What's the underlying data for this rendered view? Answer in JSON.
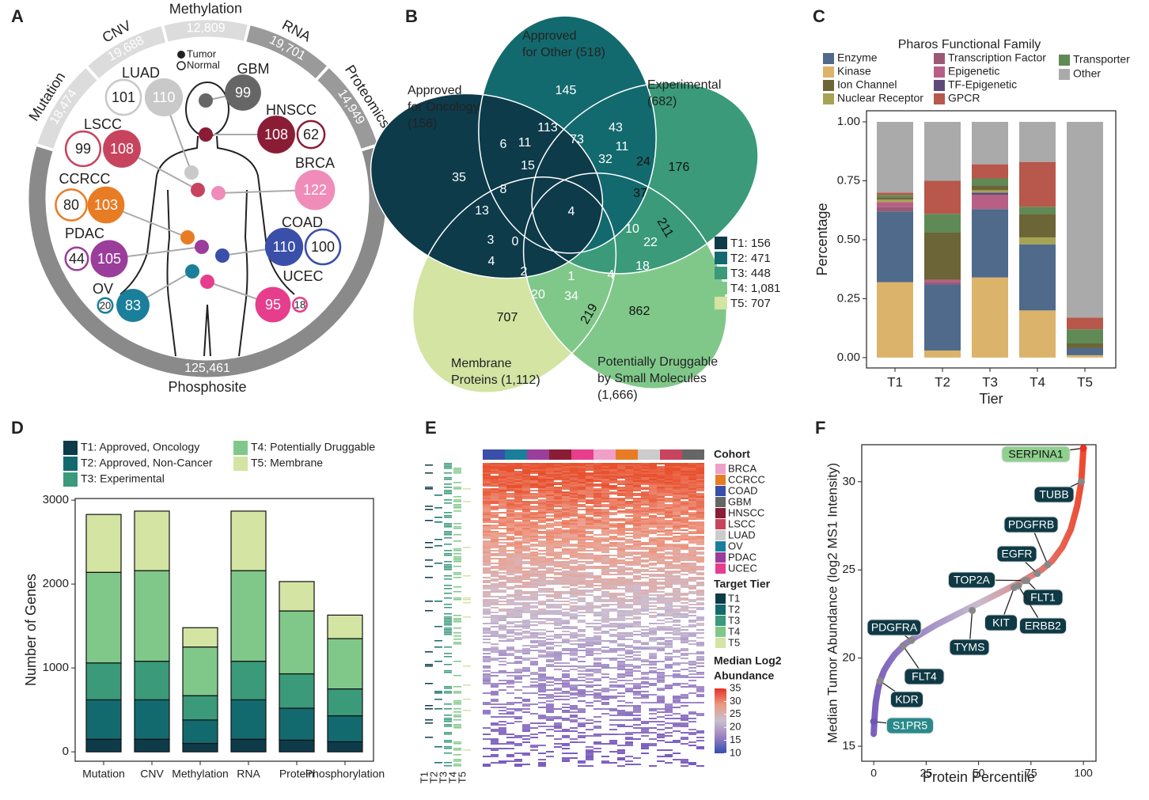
{
  "panel_labels": [
    "A",
    "B",
    "C",
    "D",
    "E",
    "F"
  ],
  "panel_a": {
    "layers": [
      {
        "name": "Mutation",
        "count": "18,474",
        "color": "#dcdcdc"
      },
      {
        "name": "CNV",
        "count": "19,688",
        "color": "#dcdcdc"
      },
      {
        "name": "Methylation",
        "count": "12,809",
        "color": "#dcdcdc"
      },
      {
        "name": "RNA",
        "count": "19,701",
        "color": "#9a9a9a"
      },
      {
        "name": "Proteomics",
        "count": "14,949",
        "color": "#9a9a9a"
      },
      {
        "name": "Phosphosite",
        "count": "125,461",
        "color": "#8a8a8a"
      }
    ],
    "legend": [
      "Tumor",
      "Normal"
    ],
    "cohorts": [
      {
        "name": "LUAD",
        "color": "#c9c9c9",
        "tumor": 110,
        "normal": 101
      },
      {
        "name": "GBM",
        "color": "#666666",
        "tumor": 99
      },
      {
        "name": "HNSCC",
        "color": "#8b1c35",
        "tumor": 108,
        "normal": 62
      },
      {
        "name": "LSCC",
        "color": "#c8445e",
        "tumor": 108,
        "normal": 99
      },
      {
        "name": "BRCA",
        "color": "#f08cba",
        "tumor": 122
      },
      {
        "name": "CCRCC",
        "color": "#e87c25",
        "tumor": 103,
        "normal": 80
      },
      {
        "name": "COAD",
        "color": "#3a4faa",
        "tumor": 110,
        "normal": 100
      },
      {
        "name": "PDAC",
        "color": "#9b3d9b",
        "tumor": 105,
        "normal": 44
      },
      {
        "name": "OV",
        "color": "#1a7f9a",
        "tumor": 83,
        "normal": 20
      },
      {
        "name": "UCEC",
        "color": "#e63e8c",
        "tumor": 95,
        "normal": 18
      }
    ]
  },
  "panel_b": {
    "sets": [
      {
        "label": [
          "Approved",
          "for Oncology",
          "(156)"
        ],
        "color": "#0d3b4a"
      },
      {
        "label": [
          "Approved",
          "for Other (518)"
        ],
        "color": "#136a6e"
      },
      {
        "label": [
          "Experimental",
          "(682)"
        ],
        "color": "#3a9a7a"
      },
      {
        "label": [
          "Potentially Druggable",
          "by Small Molecules",
          "(1,666)"
        ],
        "color": "#80c88a"
      },
      {
        "label": [
          "Membrane",
          "Proteins (1,112)"
        ],
        "color": "#d3e4a3"
      }
    ],
    "regions": [
      35,
      145,
      176,
      862,
      707,
      113,
      6,
      11,
      73,
      43,
      11,
      15,
      32,
      24,
      8,
      37,
      13,
      4,
      10,
      211,
      3,
      0,
      22,
      4,
      18,
      2,
      1,
      4,
      20,
      34,
      219
    ],
    "legend": [
      "T1: 156",
      "T2: 471",
      "T3: 448",
      "T4: 1,081",
      "T5: 707"
    ]
  },
  "panel_e": {
    "cohort_title": "Cohort",
    "cohorts": [
      {
        "name": "BRCA",
        "color": "#f0a0c8"
      },
      {
        "name": "CCRCC",
        "color": "#e87c25"
      },
      {
        "name": "COAD",
        "color": "#3a4faa"
      },
      {
        "name": "GBM",
        "color": "#666666"
      },
      {
        "name": "HNSCC",
        "color": "#8b1c35"
      },
      {
        "name": "LSCC",
        "color": "#c8445e"
      },
      {
        "name": "LUAD",
        "color": "#cccccc"
      },
      {
        "name": "OV",
        "color": "#1a7f9a"
      },
      {
        "name": "PDAC",
        "color": "#9b3d9b"
      },
      {
        "name": "UCEC",
        "color": "#e63e8c"
      }
    ],
    "tier_title": "Target Tier",
    "tiers": [
      {
        "name": "T1",
        "color": "#0d3b4a"
      },
      {
        "name": "T2",
        "color": "#136a6e"
      },
      {
        "name": "T3",
        "color": "#3a9a7a"
      },
      {
        "name": "T4",
        "color": "#80c88a"
      },
      {
        "name": "T5",
        "color": "#d3e4a3"
      }
    ],
    "scale_title": [
      "Median Log2",
      "Abundance"
    ],
    "scale_ticks": [
      35,
      30,
      25,
      20,
      15,
      10
    ],
    "scale_colors": [
      "#e8302a",
      "#e89a80",
      "#c8c0d0",
      "#9a80c0",
      "#3050b0"
    ]
  },
  "chart_data": [
    {
      "type": "stacked_bar",
      "title": "Pharos Functional Family",
      "categories": [
        "T1",
        "T2",
        "T3",
        "T4",
        "T5"
      ],
      "series": [
        {
          "name": "Kinase",
          "color": "#dcb36a",
          "values": [
            0.32,
            0.03,
            0.34,
            0.2,
            0.01
          ]
        },
        {
          "name": "Enzyme",
          "color": "#4f6a8a",
          "values": [
            0.3,
            0.28,
            0.29,
            0.28,
            0.03
          ]
        },
        {
          "name": "Transcription Factor",
          "color": "#9b5a74",
          "values": [
            0.02,
            0.01,
            0,
            0,
            0
          ]
        },
        {
          "name": "Epigenetic",
          "color": "#b85f86",
          "values": [
            0.02,
            0.01,
            0.06,
            0,
            0
          ]
        },
        {
          "name": "TF-Epigenetic",
          "color": "#5e4a7a",
          "values": [
            0,
            0,
            0.01,
            0,
            0
          ]
        },
        {
          "name": "Nuclear Receptor",
          "color": "#a6a355",
          "values": [
            0.01,
            0,
            0.01,
            0.03,
            0
          ]
        },
        {
          "name": "Ion Channel",
          "color": "#6b6538",
          "values": [
            0.01,
            0.2,
            0.02,
            0.1,
            0.02
          ]
        },
        {
          "name": "Transporter",
          "color": "#5f8a55",
          "values": [
            0.01,
            0.08,
            0.03,
            0.03,
            0.06
          ]
        },
        {
          "name": "GPCR",
          "color": "#b8574b",
          "values": [
            0.01,
            0.14,
            0.06,
            0.19,
            0.05
          ]
        },
        {
          "name": "Other",
          "color": "#aaaaaa",
          "values": [
            0.3,
            0.25,
            0.18,
            0.17,
            0.83
          ]
        }
      ],
      "xlabel": "Tier",
      "ylabel": "Percentage",
      "ylim": [
        -0.044,
        1.047
      ],
      "yticks": [
        {
          "value": 0,
          "label": "0.00"
        },
        {
          "value": 0.25,
          "label": "0.25"
        },
        {
          "value": 0.5,
          "label": "0.50"
        },
        {
          "value": 0.75,
          "label": "0.75"
        },
        {
          "value": 1,
          "label": "1.00"
        }
      ]
    },
    {
      "type": "stacked_bar",
      "categories": [
        "Mutation",
        "CNV",
        "Methylation",
        "RNA",
        "Protein",
        "Phosphorylation"
      ],
      "series": [
        {
          "name": "T1: Approved, Oncology",
          "color": "#0d3b4a",
          "values": [
            150,
            150,
            100,
            150,
            140,
            120
          ]
        },
        {
          "name": "T2: Approved, Non-Cancer",
          "color": "#136a6e",
          "values": [
            470,
            470,
            280,
            470,
            380,
            310
          ]
        },
        {
          "name": "T3: Experimental",
          "color": "#3a9a7a",
          "values": [
            440,
            460,
            290,
            460,
            410,
            320
          ]
        },
        {
          "name": "T4: Potentially Druggable",
          "color": "#80c88a",
          "values": [
            1080,
            1080,
            580,
            1080,
            750,
            600
          ]
        },
        {
          "name": "T5: Membrane",
          "color": "#d3e4a3",
          "values": [
            690,
            710,
            230,
            710,
            350,
            280
          ]
        }
      ],
      "ylabel": "Number of Genes",
      "ylim": [
        -112,
        3020
      ],
      "yticks": [
        0,
        1000,
        2000,
        3000
      ]
    },
    {
      "type": "line",
      "x": [
        0,
        0.5,
        1,
        2,
        3,
        5,
        7,
        10,
        15,
        20,
        30,
        40,
        50,
        60,
        70,
        80,
        85,
        90,
        94,
        97,
        99,
        100
      ],
      "values": [
        15.7,
        16.8,
        17.5,
        18.2,
        18.7,
        19.3,
        19.7,
        20.2,
        20.8,
        21.2,
        21.9,
        22.5,
        23.1,
        23.7,
        24.3,
        25.0,
        25.5,
        26.3,
        27.3,
        28.6,
        30.0,
        31.9
      ],
      "colors": [
        "#7b5fbc",
        "#c9bccf",
        "#ee4a30"
      ],
      "annotations": [
        {
          "text": "SERPINA1",
          "x": 100,
          "y": 31.9,
          "color": "#8fd08f"
        },
        {
          "text": "TUBB",
          "x": 99,
          "y": 30.0,
          "color": "#0f3a45"
        },
        {
          "text": "PDGFRB",
          "x": 83,
          "y": 25.3,
          "color": "#0f3a45"
        },
        {
          "text": "EGFR",
          "x": 78,
          "y": 24.8,
          "color": "#0f3a45"
        },
        {
          "text": "TOP2A",
          "x": 72,
          "y": 24.4,
          "color": "#0f3a45"
        },
        {
          "text": "FLT1",
          "x": 73,
          "y": 24.4,
          "color": "#0f3a45"
        },
        {
          "text": "KIT",
          "x": 67,
          "y": 24.0,
          "color": "#0f3a45"
        },
        {
          "text": "ERBB2",
          "x": 69,
          "y": 24.1,
          "color": "#0f3a45"
        },
        {
          "text": "TYMS",
          "x": 47,
          "y": 22.7,
          "color": "#0f3a45"
        },
        {
          "text": "PDGFRA",
          "x": 18,
          "y": 21.0,
          "color": "#0f3a45"
        },
        {
          "text": "FLT4",
          "x": 14,
          "y": 20.7,
          "color": "#0f3a45"
        },
        {
          "text": "KDR",
          "x": 3,
          "y": 18.7,
          "color": "#0f3a45"
        },
        {
          "text": "S1PR5",
          "x": 0,
          "y": 16.4,
          "color": "#2a8a8a"
        }
      ],
      "xlabel": "Protein Percentile",
      "ylabel": "Median Tumor Abundance (log2 MS1 Intensity)",
      "xlim": [
        -5.7,
        106
      ],
      "ylim": [
        14.15,
        32.1
      ],
      "xticks": [
        0,
        25,
        50,
        75,
        100
      ],
      "yticks": [
        15,
        20,
        25,
        30
      ]
    }
  ]
}
